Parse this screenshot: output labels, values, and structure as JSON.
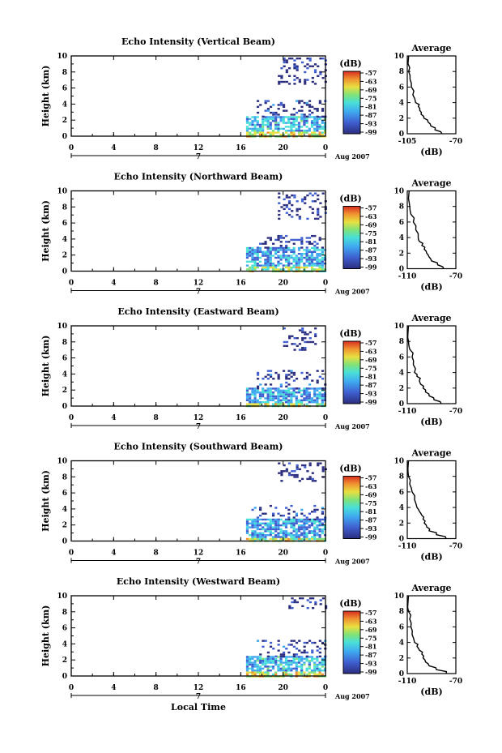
{
  "chart_data": [
    {
      "type": "heatmap",
      "title": "Echo Intensity (Vertical Beam)",
      "ylabel": "Height (km)",
      "yticks": [
        "0",
        "2",
        "4",
        "6",
        "8",
        "10"
      ],
      "ylim": [
        0,
        10
      ],
      "xticks": [
        "0",
        "4",
        "8",
        "12",
        "16",
        "20",
        "0"
      ],
      "xlim": [
        0,
        24
      ],
      "date_marker": "7",
      "date_label": "Aug 2007",
      "colorbar": {
        "label": "(dB)",
        "ticks": [
          "-57",
          "-63",
          "-69",
          "-75",
          "-81",
          "-87",
          "-93",
          "-99"
        ]
      },
      "echo_regions": [
        {
          "x": [
            16.5,
            24
          ],
          "y": [
            0,
            2.5
          ],
          "level": 0.35
        },
        {
          "x": [
            17.5,
            24
          ],
          "y": [
            2.5,
            4.5
          ],
          "level": 0.1
        },
        {
          "x": [
            19.5,
            24
          ],
          "y": [
            6.5,
            9.8
          ],
          "level": 0.05
        }
      ],
      "average_profile": {
        "title": "Average",
        "xlabel": "(dB)",
        "xticks": [
          "-105",
          "-70"
        ],
        "xlim": [
          -105,
          -70
        ],
        "yticks": [
          "0",
          "2",
          "4",
          "6",
          "8",
          "10"
        ],
        "ylim": [
          0,
          10
        ],
        "x": [
          -80,
          -85,
          -88,
          -90,
          -93,
          -95,
          -96,
          -97,
          -99,
          -101,
          -102,
          -103,
          -104,
          -104.5
        ],
        "y": [
          0,
          0.5,
          1,
          1.5,
          2,
          2.5,
          3,
          3.5,
          4,
          5,
          6,
          7,
          8,
          9
        ]
      }
    },
    {
      "type": "heatmap",
      "title": "Echo Intensity (Northward Beam)",
      "ylabel": "Height (km)",
      "yticks": [
        "0",
        "2",
        "4",
        "6",
        "8",
        "10"
      ],
      "ylim": [
        0,
        10
      ],
      "xticks": [
        "0",
        "4",
        "8",
        "12",
        "16",
        "20",
        "0"
      ],
      "xlim": [
        0,
        24
      ],
      "date_marker": "7",
      "date_label": "Aug 2007",
      "colorbar": {
        "label": "(dB)",
        "ticks": [
          "-57",
          "-63",
          "-69",
          "-75",
          "-81",
          "-87",
          "-93",
          "-99"
        ]
      },
      "echo_regions": [
        {
          "x": [
            16.5,
            24
          ],
          "y": [
            0,
            3
          ],
          "level": 0.3
        },
        {
          "x": [
            17,
            24
          ],
          "y": [
            3,
            4.5
          ],
          "level": 0.1
        },
        {
          "x": [
            19.5,
            24
          ],
          "y": [
            6.5,
            9.8
          ],
          "level": 0.05
        }
      ],
      "average_profile": {
        "title": "Average",
        "xlabel": "(dB)",
        "xticks": [
          "-110",
          "-70"
        ],
        "xlim": [
          -110,
          -70
        ],
        "yticks": [
          "0",
          "2",
          "4",
          "6",
          "8",
          "10"
        ],
        "ylim": [
          0,
          10
        ],
        "x": [
          -80,
          -85,
          -90,
          -92,
          -94,
          -96,
          -98,
          -100,
          -101,
          -103,
          -105,
          -107,
          -108,
          -109
        ],
        "y": [
          0,
          0.5,
          1,
          1.5,
          2,
          2.5,
          3,
          3.5,
          4,
          5,
          6,
          7,
          8,
          9
        ]
      }
    },
    {
      "type": "heatmap",
      "title": "Echo Intensity (Eastward Beam)",
      "ylabel": "Height (km)",
      "yticks": [
        "0",
        "2",
        "4",
        "6",
        "8",
        "10"
      ],
      "ylim": [
        0,
        10
      ],
      "xticks": [
        "0",
        "4",
        "8",
        "12",
        "16",
        "20",
        "0"
      ],
      "xlim": [
        0,
        24
      ],
      "date_marker": "7",
      "date_label": "Aug 2007",
      "colorbar": {
        "label": "(dB)",
        "ticks": [
          "-57",
          "-63",
          "-69",
          "-75",
          "-81",
          "-87",
          "-93",
          "-99"
        ]
      },
      "echo_regions": [
        {
          "x": [
            16.5,
            24
          ],
          "y": [
            0,
            2.3
          ],
          "level": 0.3
        },
        {
          "x": [
            17.5,
            24
          ],
          "y": [
            2.3,
            4.5
          ],
          "level": 0.1
        },
        {
          "x": [
            20,
            23
          ],
          "y": [
            7,
            9.8
          ],
          "level": 0.05
        }
      ],
      "average_profile": {
        "title": "Average",
        "xlabel": "(dB)",
        "xticks": [
          "-110",
          "-70"
        ],
        "xlim": [
          -110,
          -70
        ],
        "yticks": [
          "0",
          "2",
          "4",
          "6",
          "8",
          "10"
        ],
        "ylim": [
          0,
          10
        ],
        "x": [
          -82,
          -88,
          -92,
          -95,
          -97,
          -99,
          -100,
          -102,
          -104,
          -105,
          -106,
          -108,
          -109,
          -109.5
        ],
        "y": [
          0,
          0.5,
          1,
          1.5,
          2,
          2.5,
          3,
          3.5,
          4,
          5,
          6,
          7,
          8,
          9
        ]
      }
    },
    {
      "type": "heatmap",
      "title": "Echo Intensity (Southward Beam)",
      "ylabel": "Height (km)",
      "yticks": [
        "0",
        "2",
        "4",
        "6",
        "8",
        "10"
      ],
      "ylim": [
        0,
        10
      ],
      "xticks": [
        "0",
        "4",
        "8",
        "12",
        "16",
        "20",
        "0"
      ],
      "xlim": [
        0,
        24
      ],
      "date_marker": "7",
      "date_label": "Aug 2007",
      "colorbar": {
        "label": "(dB)",
        "ticks": [
          "-57",
          "-63",
          "-69",
          "-75",
          "-81",
          "-87",
          "-93",
          "-99"
        ]
      },
      "echo_regions": [
        {
          "x": [
            16.5,
            24
          ],
          "y": [
            0,
            2.8
          ],
          "level": 0.3
        },
        {
          "x": [
            17,
            24
          ],
          "y": [
            2.8,
            4.5
          ],
          "level": 0.1
        },
        {
          "x": [
            19.5,
            24
          ],
          "y": [
            7.5,
            9.8
          ],
          "level": 0.05
        }
      ],
      "average_profile": {
        "title": "Average",
        "xlabel": "(dB)",
        "xticks": [
          "-110",
          "-70"
        ],
        "xlim": [
          -110,
          -70
        ],
        "yticks": [
          "0",
          "2",
          "4",
          "6",
          "8",
          "10"
        ],
        "ylim": [
          0,
          10
        ],
        "x": [
          -78,
          -86,
          -92,
          -94,
          -96,
          -97,
          -98,
          -100,
          -102,
          -104,
          -106,
          -108,
          -109,
          -109.5
        ],
        "y": [
          0,
          0.5,
          1,
          1.5,
          2,
          2.5,
          3,
          3.5,
          4,
          5,
          6,
          7,
          8,
          9
        ]
      }
    },
    {
      "type": "heatmap",
      "title": "Echo Intensity (Westward Beam)",
      "ylabel": "Height (km)",
      "yticks": [
        "0",
        "2",
        "4",
        "6",
        "8",
        "10"
      ],
      "ylim": [
        0,
        10
      ],
      "xticks": [
        "0",
        "4",
        "8",
        "12",
        "16",
        "20",
        "0"
      ],
      "xlim": [
        0,
        24
      ],
      "date_marker": "7",
      "date_label": "Aug 2007",
      "xlabel": "Local Time",
      "colorbar": {
        "label": "(dB)",
        "ticks": [
          "-57",
          "-63",
          "-69",
          "-75",
          "-81",
          "-87",
          "-93",
          "-99"
        ]
      },
      "echo_regions": [
        {
          "x": [
            16.5,
            24
          ],
          "y": [
            0,
            2.5
          ],
          "level": 0.35
        },
        {
          "x": [
            17.5,
            24
          ],
          "y": [
            2.5,
            4.5
          ],
          "level": 0.1
        },
        {
          "x": [
            20.5,
            24
          ],
          "y": [
            8.5,
            9.8
          ],
          "level": 0.05
        }
      ],
      "average_profile": {
        "title": "Average",
        "xlabel": "(dB)",
        "xticks": [
          "-110",
          "-70"
        ],
        "xlim": [
          -110,
          -70
        ],
        "yticks": [
          "0",
          "2",
          "4",
          "6",
          "8",
          "10"
        ],
        "ylim": [
          0,
          10
        ],
        "x": [
          -78,
          -86,
          -92,
          -95,
          -97,
          -98,
          -100,
          -102,
          -104,
          -106,
          -107,
          -108,
          -109,
          -109.5
        ],
        "y": [
          0,
          0.5,
          1,
          1.5,
          2,
          2.5,
          3,
          3.5,
          4,
          5,
          6,
          7,
          8,
          9
        ]
      }
    }
  ],
  "colors": {
    "scale": [
      "#2b2d7e",
      "#3f5fd0",
      "#3fa8f0",
      "#49e0d8",
      "#7fe27a",
      "#e8e040",
      "#f09030",
      "#d82c20"
    ],
    "axis": "#000000"
  }
}
